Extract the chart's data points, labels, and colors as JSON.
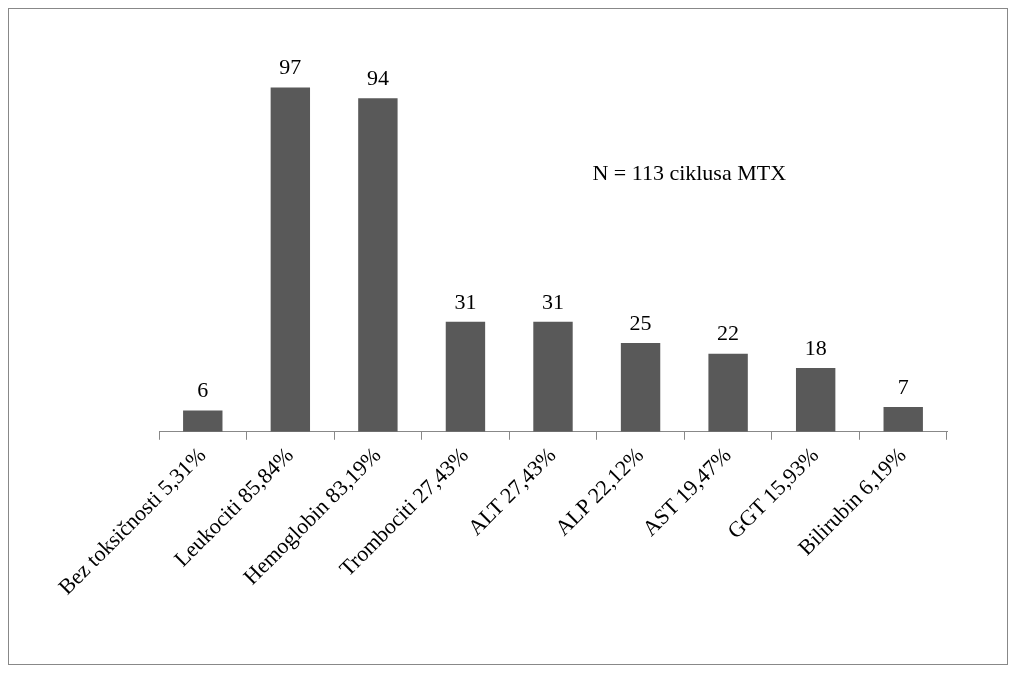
{
  "chart_data": {
    "type": "bar",
    "categories": [
      "Bez toksičnosti 5,31%",
      "Leukociti 85,84%",
      "Hemoglobin 83,19%",
      "Trombociti 27,43%",
      "ALT 27,43%",
      "ALP 22,12%",
      "AST 19,47%",
      "GGT 15,93%",
      "Bilirubin 6,19%"
    ],
    "values": [
      6,
      97,
      94,
      31,
      31,
      25,
      22,
      18,
      7
    ],
    "color": "#595959",
    "data_labels": true,
    "grid": false,
    "legend": false,
    "annotations": [
      "N = 113 ciklusa MTX"
    ]
  }
}
